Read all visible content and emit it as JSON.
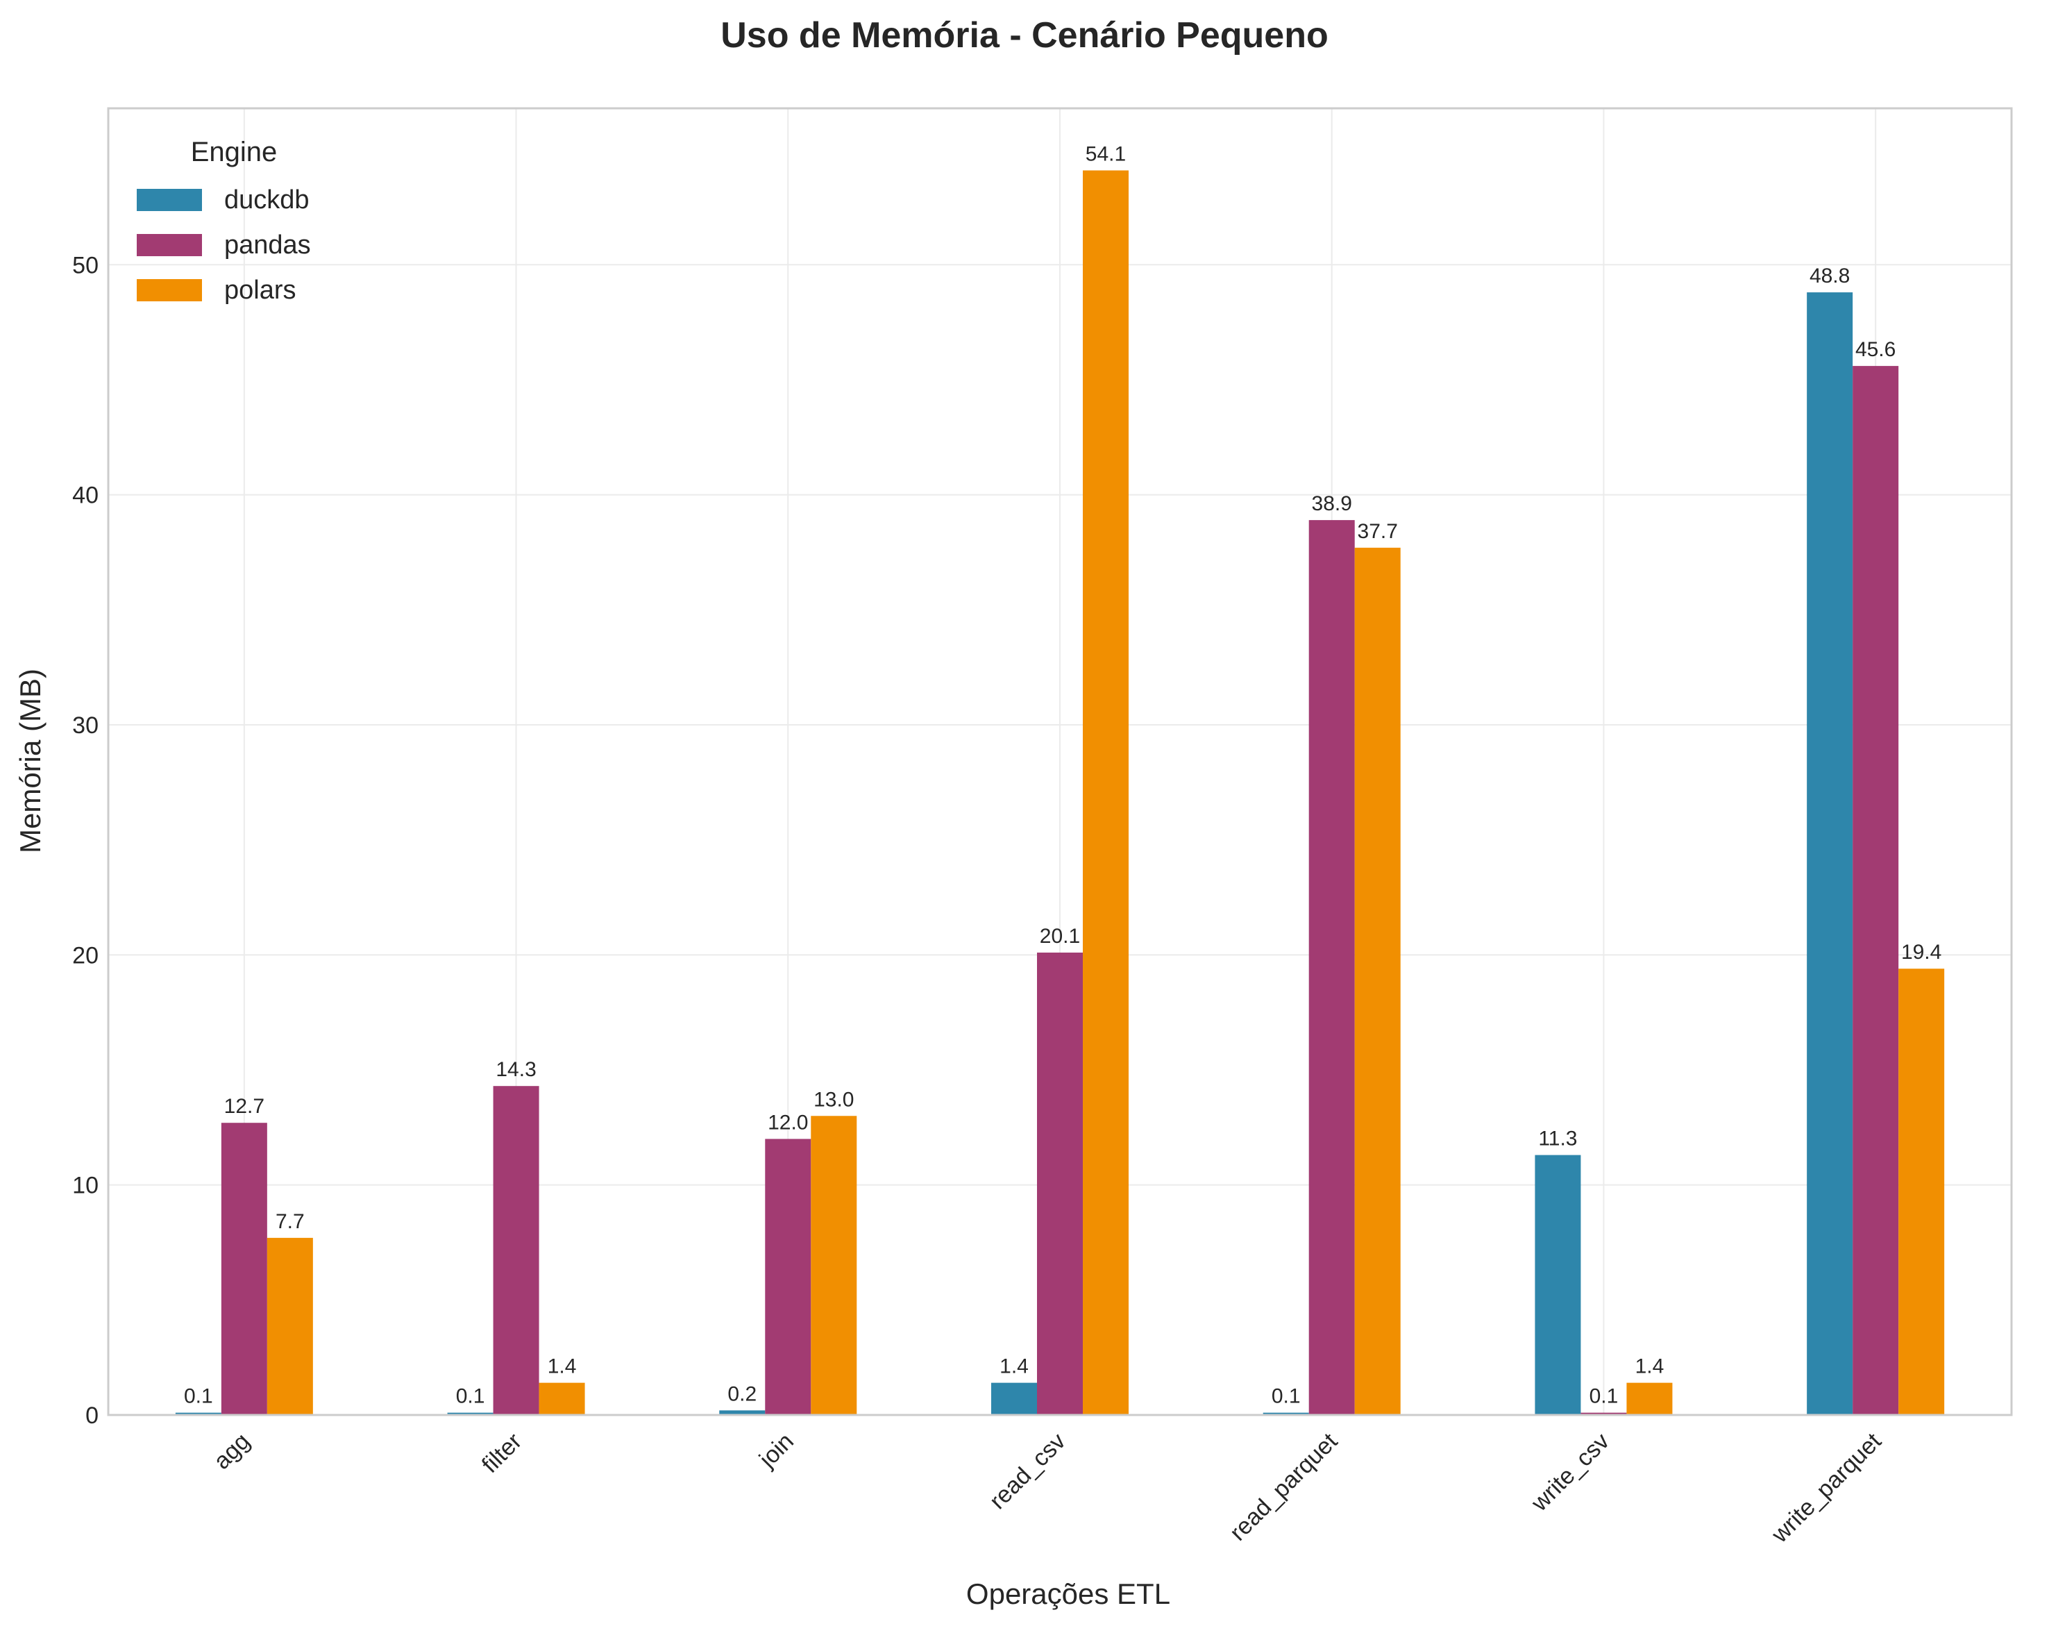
{
  "chart_data": {
    "type": "bar",
    "title": "Uso de Memória - Cenário Pequeno",
    "xlabel": "Operações ETL",
    "ylabel": "Memória (MB)",
    "categories": [
      "agg",
      "filter",
      "join",
      "read_csv",
      "read_parquet",
      "write_csv",
      "write_parquet"
    ],
    "series": [
      {
        "name": "duckdb",
        "color": "#2e86ab",
        "values": [
          0.1,
          0.1,
          0.2,
          1.4,
          0.1,
          11.3,
          48.8
        ]
      },
      {
        "name": "pandas",
        "color": "#a23b72",
        "values": [
          12.7,
          14.3,
          12.0,
          20.1,
          38.9,
          0.1,
          45.6
        ]
      },
      {
        "name": "polars",
        "color": "#f18f01",
        "values": [
          7.7,
          1.4,
          13.0,
          54.1,
          37.7,
          1.4,
          19.4
        ]
      }
    ],
    "data_labels": [
      [
        "0.1",
        "0.1",
        "0.2",
        "1.4",
        "0.1",
        "11.3",
        "48.8"
      ],
      [
        "12.7",
        "14.3",
        "12.0",
        "20.1",
        "38.9",
        "0.1",
        "45.6"
      ],
      [
        "7.7",
        "1.4",
        "13.0",
        "54.1",
        "37.7",
        "1.4",
        "19.4"
      ]
    ],
    "ylim": [
      0,
      56.8
    ],
    "yticks": [
      0,
      10,
      20,
      30,
      40,
      50
    ],
    "grid": true,
    "legend": {
      "title": "Engine",
      "placement": "top-left"
    }
  }
}
